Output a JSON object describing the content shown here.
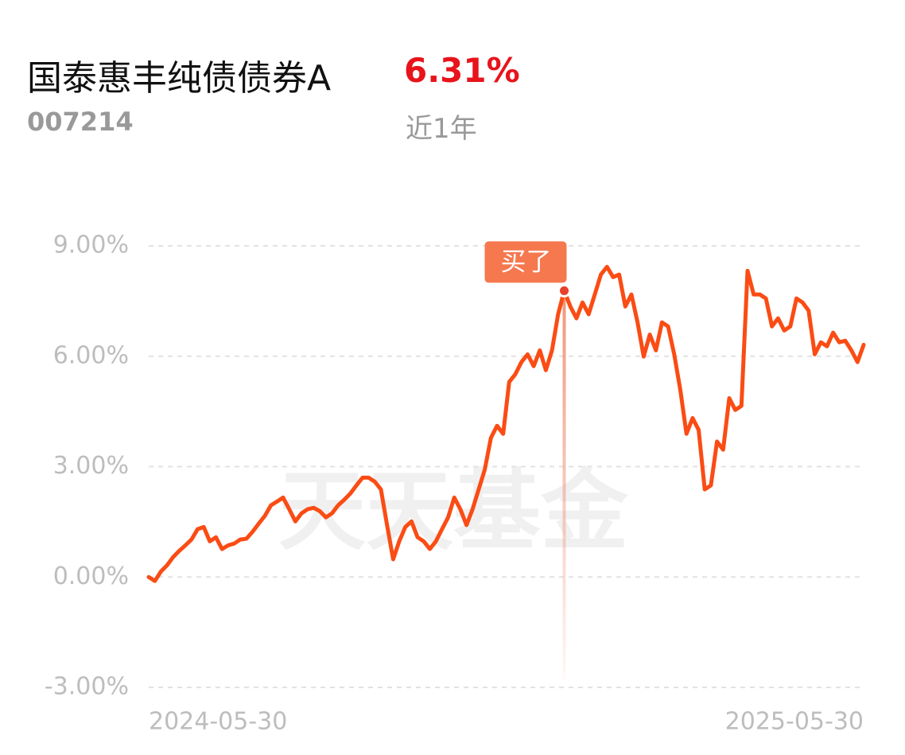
{
  "header": {
    "fund_name": "国泰惠丰纯债债券A",
    "return_label": "6.31%",
    "fund_code": "007214",
    "period": "近1年"
  },
  "chart_data": {
    "type": "line",
    "watermark": "天天基金",
    "annotation": "买了",
    "categories": [
      "2024-05-30",
      null,
      null,
      null,
      null,
      null,
      null,
      null,
      null,
      null,
      null,
      null,
      null,
      null,
      null,
      null,
      null,
      null,
      null,
      null,
      null,
      null,
      null,
      null,
      null,
      null,
      null,
      null,
      null,
      null,
      null,
      null,
      null,
      null,
      null,
      null,
      null,
      null,
      null,
      null,
      null,
      null,
      null,
      null,
      null,
      null,
      null,
      null,
      null,
      null,
      null,
      null,
      null,
      null,
      null,
      null,
      null,
      null,
      null,
      null,
      null,
      null,
      null,
      null,
      null,
      null,
      null,
      null,
      null,
      null,
      null,
      null,
      null,
      null,
      null,
      null,
      null,
      null,
      null,
      null,
      null,
      null,
      null,
      null,
      null,
      null,
      null,
      null,
      null,
      null,
      null,
      null,
      null,
      null,
      null,
      null,
      null,
      null,
      null,
      null,
      null,
      null,
      null,
      null,
      null,
      null,
      null,
      null,
      null,
      null,
      null,
      null,
      null,
      null,
      null,
      null,
      null,
      "2025-05-30"
    ],
    "series": [
      {
        "color": "#fa4c14",
        "values": [
          0.0,
          -0.11,
          0.15,
          0.32,
          0.54,
          0.71,
          0.86,
          1.02,
          1.3,
          1.36,
          0.97,
          1.08,
          0.76,
          0.86,
          0.91,
          1.02,
          1.04,
          1.23,
          1.45,
          1.66,
          1.95,
          2.05,
          2.16,
          1.84,
          1.51,
          1.73,
          1.84,
          1.88,
          1.79,
          1.62,
          1.73,
          1.95,
          2.1,
          2.27,
          2.49,
          2.7,
          2.7,
          2.59,
          2.38,
          1.41,
          0.48,
          0.97,
          1.36,
          1.51,
          1.08,
          0.97,
          0.76,
          0.97,
          1.3,
          1.62,
          2.16,
          1.84,
          1.41,
          1.84,
          2.38,
          2.92,
          3.78,
          4.11,
          3.89,
          5.3,
          5.51,
          5.84,
          6.05,
          5.73,
          6.16,
          5.62,
          6.16,
          7.14,
          7.78,
          7.35,
          7.03,
          7.46,
          7.14,
          7.68,
          8.22,
          8.43,
          8.15,
          8.22,
          7.35,
          7.68,
          6.92,
          5.99,
          6.59,
          6.16,
          6.92,
          6.81,
          6.05,
          5.08,
          3.89,
          4.32,
          4.0,
          2.38,
          2.49,
          3.68,
          3.46,
          4.86,
          4.54,
          4.65,
          8.32,
          7.68,
          7.68,
          7.57,
          6.81,
          7.03,
          6.7,
          6.81,
          7.57,
          7.46,
          7.24,
          6.05,
          6.38,
          6.27,
          6.64,
          6.38,
          6.42,
          6.16,
          5.84,
          6.31
        ]
      }
    ],
    "ylim": [
      -3,
      9
    ],
    "yticks": [
      {
        "value": 9,
        "label": "9.00%"
      },
      {
        "value": 6,
        "label": "6.00%"
      },
      {
        "value": 3,
        "label": "3.00%"
      },
      {
        "value": 0,
        "label": "0.00%"
      },
      {
        "value": -3,
        "label": "-3.00%"
      }
    ],
    "grid": true
  }
}
